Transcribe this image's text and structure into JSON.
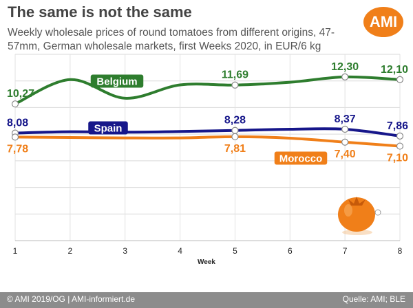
{
  "header": {
    "title": "The same is not the same",
    "subtitle": "Weekly wholesale prices of round tomatoes from different origins, 47-57mm, German wholesale markets, first Weeks 2020, in EUR/6 kg",
    "logo_text": "AMI"
  },
  "footer": {
    "left": "© AMI 2019/OG | AMI-informiert.de",
    "right": "Quelle: AMI; BLE"
  },
  "chart_data": {
    "type": "line",
    "x": [
      1,
      2,
      3,
      4,
      5,
      6,
      7,
      8
    ],
    "xlabel": "Week",
    "ylabel": "",
    "ylim": [
      0,
      14
    ],
    "grid": true,
    "series": [
      {
        "name": "Belgium",
        "color": "#2e7d2e",
        "values": [
          10.27,
          12.1,
          10.7,
          11.7,
          11.69,
          11.9,
          12.3,
          12.1
        ],
        "labeled": [
          {
            "index": 0,
            "label": "10,27"
          },
          {
            "index": 4,
            "label": "11,69"
          },
          {
            "index": 6,
            "label": "12,30"
          },
          {
            "index": 7,
            "label": "12,10"
          }
        ]
      },
      {
        "name": "Spain",
        "color": "#16168a",
        "values": [
          8.08,
          8.18,
          8.15,
          8.2,
          8.28,
          8.37,
          8.37,
          7.86
        ],
        "labeled": [
          {
            "index": 0,
            "label": "8,08"
          },
          {
            "index": 4,
            "label": "8,28"
          },
          {
            "index": 6,
            "label": "8,37"
          },
          {
            "index": 7,
            "label": "7,86"
          }
        ]
      },
      {
        "name": "Morocco",
        "color": "#f07f19",
        "values": [
          7.78,
          7.75,
          7.72,
          7.72,
          7.81,
          7.7,
          7.4,
          7.1
        ],
        "labeled": [
          {
            "index": 0,
            "label": "7,78"
          },
          {
            "index": 4,
            "label": "7,81"
          },
          {
            "index": 6,
            "label": "7,40"
          },
          {
            "index": 7,
            "label": "7,10"
          }
        ]
      }
    ]
  }
}
